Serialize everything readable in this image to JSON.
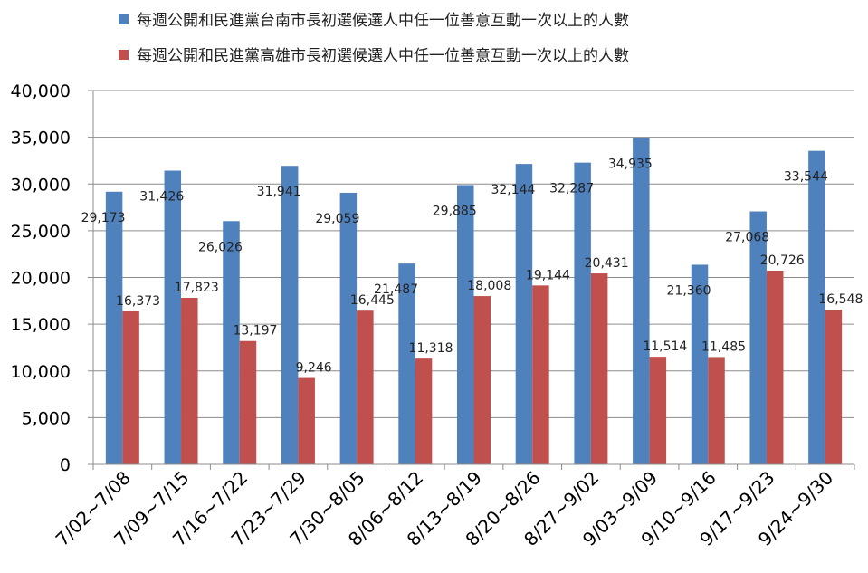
{
  "chart_data": {
    "type": "bar",
    "categories": [
      "7/02~7/08",
      "7/09~7/15",
      "7/16~7/22",
      "7/23~7/29",
      "7/30~8/05",
      "8/06~8/12",
      "8/13~8/19",
      "8/20~8/26",
      "8/27~9/02",
      "9/03~9/09",
      "9/10~9/16",
      "9/17~9/23",
      "9/24~9/30"
    ],
    "series": [
      {
        "name": "每週公開和民進黨台南市長初選候選人中任一位善意互動一次以上的人數",
        "color": "#4F81BD",
        "values": [
          29173,
          31426,
          26026,
          31941,
          29059,
          21487,
          29885,
          32144,
          32287,
          34935,
          21360,
          27068,
          33544
        ],
        "labels": [
          "29,173",
          "31,426",
          "26,026",
          "31,941",
          "29,059",
          "21,487",
          "29,885",
          "32,144",
          "32,287",
          "34,935",
          "21,360",
          "27,068",
          "33,544"
        ]
      },
      {
        "name": "每週公開和民進黨高雄市長初選候選人中任一位善意互動一次以上的人數",
        "color": "#C0504D",
        "values": [
          16373,
          17823,
          13197,
          9246,
          16445,
          11318,
          18008,
          19144,
          20431,
          11514,
          11485,
          20726,
          16548
        ],
        "labels": [
          "16,373",
          "17,823",
          "13,197",
          "9,246",
          "16,445",
          "11,318",
          "18,008",
          "19,144",
          "20,431",
          "11,514",
          "11,485",
          "20,726",
          "16,548"
        ]
      }
    ],
    "yticks": [
      "0",
      "5,000",
      "10,000",
      "15,000",
      "20,000",
      "25,000",
      "30,000",
      "35,000",
      "40,000"
    ],
    "ylim": [
      0,
      40000
    ],
    "grid": true,
    "legend_position": "top"
  }
}
